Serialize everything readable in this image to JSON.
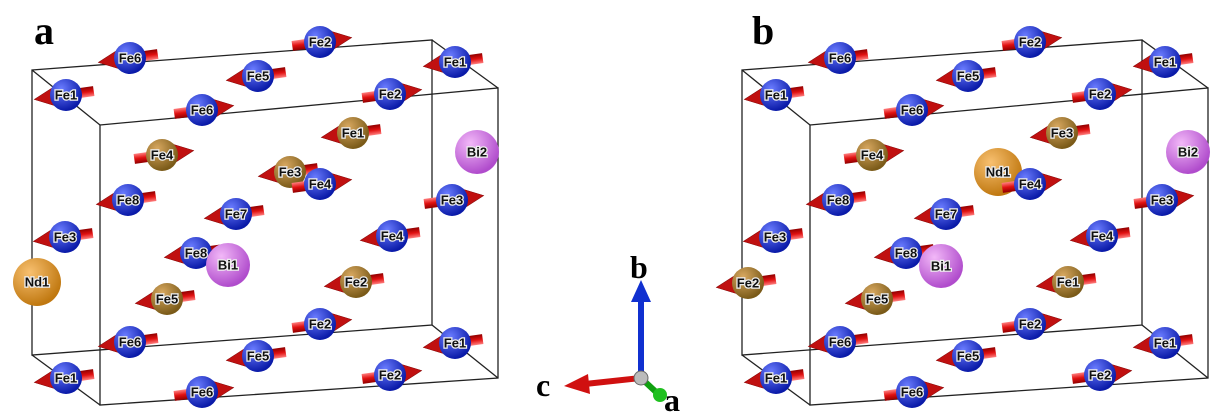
{
  "panels": [
    {
      "label": "a",
      "atoms": [
        "Fe6",
        "Fe2",
        "Fe1",
        "Fe5",
        "Fe1",
        "Fe6",
        "Fe2",
        "Fe1",
        "Fe4",
        "Fe3",
        "Fe4",
        "Bi2",
        "Fe8",
        "Fe3",
        "Fe7",
        "Fe3",
        "Fe4",
        "Fe8",
        "Bi1",
        "Nd1",
        "Fe2",
        "Fe5",
        "Fe2",
        "Fe6",
        "Fe1",
        "Fe5",
        "Fe1",
        "Fe2",
        "Fe6"
      ]
    },
    {
      "label": "b",
      "atoms": [
        "Fe6",
        "Fe2",
        "Fe1",
        "Fe5",
        "Fe1",
        "Fe6",
        "Fe2",
        "Fe3",
        "Fe4",
        "Nd1",
        "Fe4",
        "Bi2",
        "Fe8",
        "Fe3",
        "Fe7",
        "Fe3",
        "Fe4",
        "Fe8",
        "Bi1",
        "Fe2",
        "Fe1",
        "Fe5",
        "Fe2",
        "Fe6",
        "Fe1",
        "Fe5",
        "Fe1",
        "Fe2",
        "Fe6"
      ]
    }
  ],
  "axes": {
    "b": "b",
    "c": "c",
    "a": "a"
  }
}
